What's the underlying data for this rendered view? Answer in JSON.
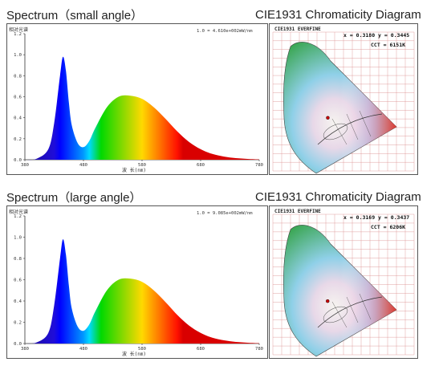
{
  "sections": [
    {
      "spectrum_title": "Spectrum（small angle）",
      "cie_title": "CIE1931 Chromaticity Diagram"
    },
    {
      "spectrum_title": "Spectrum（large angle）",
      "cie_title": "CIE1931 Chromaticity Diagram"
    }
  ],
  "chart_data": [
    {
      "type": "area",
      "title": "Spectrum（small angle）",
      "ylabel": "相对光谱",
      "xlabel": "波 长(nm)",
      "annotation": "1.0 = 4.610e+002mW/nm",
      "xlim": [
        380,
        780
      ],
      "ylim": [
        0,
        1.2
      ],
      "x_ticks": [
        "380",
        "480",
        "580",
        "680",
        "780"
      ],
      "y_ticks": [
        "0.0",
        "0.2",
        "0.4",
        "0.6",
        "0.8",
        "1.0",
        "1.2"
      ],
      "x": [
        380,
        400,
        420,
        430,
        440,
        445,
        450,
        455,
        460,
        470,
        480,
        490,
        500,
        520,
        540,
        560,
        580,
        600,
        620,
        640,
        660,
        680,
        700,
        720,
        740,
        760,
        780
      ],
      "y": [
        0.0,
        0.01,
        0.1,
        0.35,
        0.8,
        0.98,
        0.85,
        0.55,
        0.33,
        0.16,
        0.12,
        0.18,
        0.3,
        0.5,
        0.6,
        0.61,
        0.58,
        0.5,
        0.39,
        0.27,
        0.17,
        0.1,
        0.055,
        0.03,
        0.015,
        0.008,
        0.003
      ]
    },
    {
      "type": "scatter",
      "title": "CIE1931 Chromaticity Diagram",
      "header": "CIE1931  EVERFINE",
      "coordinates_text": "x = 0.3180  y = 0.3445",
      "cct_text": "CCT = 6151K",
      "x": [
        0.318
      ],
      "y": [
        0.3445
      ]
    },
    {
      "type": "area",
      "title": "Spectrum（large angle）",
      "ylabel": "相对光谱",
      "xlabel": "波 长(nm)",
      "annotation": "1.0 = 9.085e+002mW/nm",
      "xlim": [
        380,
        780
      ],
      "ylim": [
        0,
        1.2
      ],
      "x_ticks": [
        "380",
        "480",
        "580",
        "680",
        "780"
      ],
      "y_ticks": [
        "0.0",
        "0.2",
        "0.4",
        "0.6",
        "0.8",
        "1.0",
        "1.2"
      ],
      "x": [
        380,
        400,
        420,
        430,
        440,
        445,
        450,
        455,
        460,
        470,
        480,
        490,
        500,
        520,
        540,
        560,
        580,
        600,
        620,
        640,
        660,
        680,
        700,
        720,
        740,
        760,
        780
      ],
      "y": [
        0.0,
        0.01,
        0.1,
        0.36,
        0.8,
        0.98,
        0.84,
        0.55,
        0.33,
        0.16,
        0.12,
        0.18,
        0.3,
        0.5,
        0.6,
        0.61,
        0.58,
        0.5,
        0.39,
        0.27,
        0.17,
        0.1,
        0.055,
        0.03,
        0.015,
        0.008,
        0.003
      ]
    },
    {
      "type": "scatter",
      "title": "CIE1931 Chromaticity Diagram",
      "header": "CIE1931  EVERFINE",
      "coordinates_text": "x = 0.3169  y = 0.3437",
      "cct_text": "CCT = 6206K",
      "x": [
        0.3169
      ],
      "y": [
        0.3437
      ]
    }
  ]
}
